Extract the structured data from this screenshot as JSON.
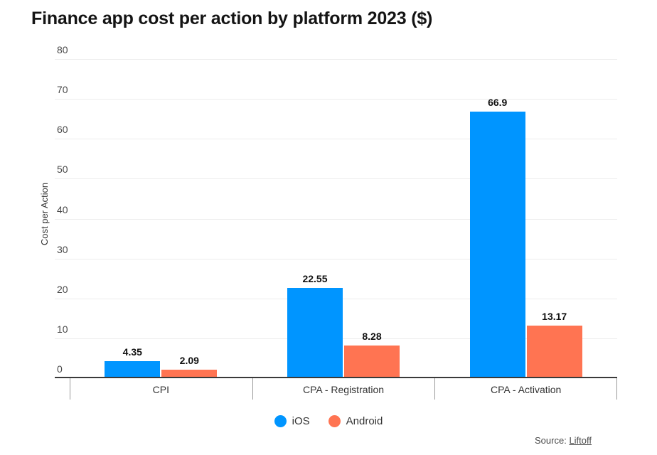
{
  "title": "Finance app cost per action by platform 2023 ($)",
  "y_axis_label": "Cost per Action",
  "legend": [
    {
      "label": "iOS",
      "color": "#0095ff"
    },
    {
      "label": "Android",
      "color": "#ff7452"
    }
  ],
  "source": {
    "prefix": "Source:",
    "link_label": "Liftoff"
  },
  "chart_data": {
    "type": "bar",
    "title": "Finance app cost per action by platform 2023 ($)",
    "categories": [
      "CPI",
      "CPA - Registration",
      "CPA - Activation"
    ],
    "series": [
      {
        "name": "iOS",
        "color": "#0095ff",
        "values": [
          4.35,
          22.55,
          66.9
        ]
      },
      {
        "name": "Android",
        "color": "#ff7452",
        "values": [
          2.09,
          8.28,
          13.17
        ]
      }
    ],
    "value_labels": [
      [
        "4.35",
        "22.55",
        "66.9"
      ],
      [
        "2.09",
        "8.28",
        "13.17"
      ]
    ],
    "xlabel": "",
    "ylabel": "Cost per Action",
    "ylim": [
      0,
      80
    ],
    "yticks": [
      0,
      10,
      20,
      30,
      40,
      50,
      60,
      70,
      80
    ],
    "grid": true,
    "gridline_color": "#ececec",
    "axis_line_color": "#3a3a3a",
    "legend_position": "bottom",
    "background_color": "#ffffff"
  }
}
